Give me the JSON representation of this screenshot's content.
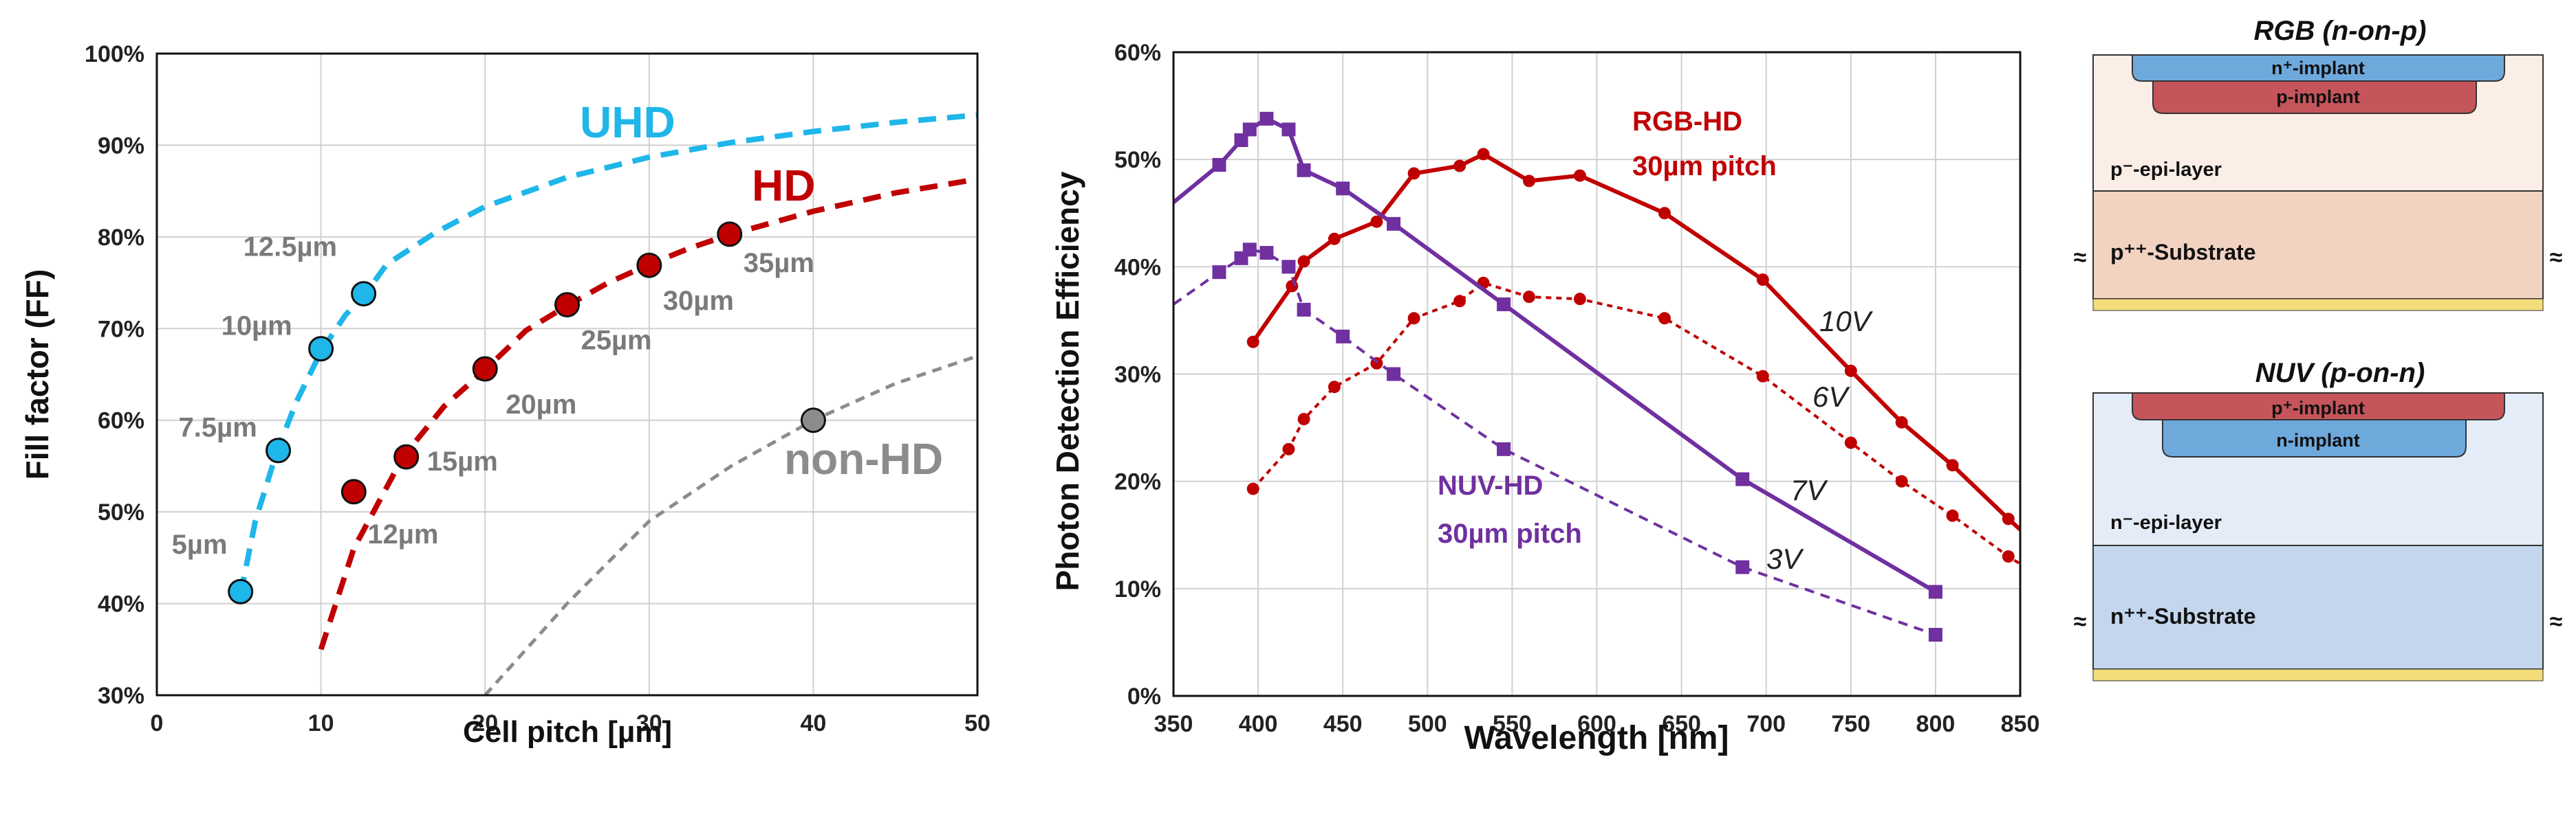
{
  "chart_data": [
    {
      "type": "scatter",
      "title": "",
      "xlabel": "Cell pitch [µm]",
      "ylabel": "Fill factor (FF)",
      "xlim": [
        0,
        50
      ],
      "ylim": [
        30,
        100
      ],
      "x_ticks": [
        "0",
        "10",
        "20",
        "30",
        "40",
        "50"
      ],
      "y_ticks": [
        "30%",
        "40%",
        "50%",
        "60%",
        "70%",
        "80%",
        "90%",
        "100%"
      ],
      "grid": true,
      "series": [
        {
          "name": "UHD",
          "color": "#1fb6ea",
          "curve": {
            "x": [
              5.1,
              6,
              7.3,
              8.5,
              10,
              11.5,
              12.6,
              14,
              17,
              20,
              25,
              30,
              35,
              40,
              45,
              50
            ],
            "y": [
              41,
              49,
              56.5,
              62,
              67.5,
              71.5,
              73.5,
              77,
              80.5,
              83.3,
              86.5,
              88.7,
              90.3,
              91.5,
              92.5,
              93.3
            ]
          },
          "points": [
            {
              "x": 5.1,
              "y": 41.3,
              "label": "5µm"
            },
            {
              "x": 7.4,
              "y": 56.7,
              "label": "7.5µm"
            },
            {
              "x": 10.0,
              "y": 67.8,
              "label": "10µm"
            },
            {
              "x": 12.6,
              "y": 73.8,
              "label": "12.5µm"
            }
          ]
        },
        {
          "name": "HD",
          "color": "#c00000",
          "curve": {
            "x": [
              10,
              12,
              15,
              17.5,
              20,
              22.5,
              25,
              27.5,
              30,
              32.5,
              35,
              40,
              45,
              50
            ],
            "y": [
              35,
              46,
              56,
              61.5,
              65.5,
              69.8,
              72.5,
              75,
              77,
              78.8,
              80.3,
              82.8,
              84.8,
              86.3
            ]
          },
          "points": [
            {
              "x": 12.0,
              "y": 52.2,
              "label": "12µm"
            },
            {
              "x": 15.2,
              "y": 56.0,
              "label": "15µm"
            },
            {
              "x": 20.0,
              "y": 65.6,
              "label": "20µm"
            },
            {
              "x": 25.0,
              "y": 72.6,
              "label": "25µm"
            },
            {
              "x": 30.0,
              "y": 76.9,
              "label": "30µm"
            },
            {
              "x": 34.9,
              "y": 80.3,
              "label": "35µm"
            }
          ]
        },
        {
          "name": "non-HD",
          "color": "#8c8c8c",
          "curve": {
            "x": [
              20,
              25,
              30,
              35,
              40,
              45,
              50
            ],
            "y": [
              30,
              40,
              49,
              55,
              60,
              64,
              67
            ]
          },
          "points": [
            {
              "x": 40.0,
              "y": 60.0,
              "label": ""
            }
          ]
        }
      ],
      "annotations": [
        "UHD",
        "HD",
        "non-HD"
      ]
    },
    {
      "type": "line",
      "title": "",
      "xlabel": "Wavelength  [nm]",
      "ylabel": "Photon Detection Efficiency",
      "xlim": [
        350,
        850
      ],
      "ylim": [
        0,
        60
      ],
      "x_ticks": [
        "350",
        "400",
        "450",
        "500",
        "550",
        "600",
        "650",
        "700",
        "750",
        "800",
        "850"
      ],
      "y_ticks": [
        "0%",
        "10%",
        "20%",
        "30%",
        "40%",
        "50%",
        "60%"
      ],
      "grid": true,
      "series": [
        {
          "name": "RGB-HD 10V",
          "label": "10V",
          "color": "#c00000",
          "dashed": false,
          "marker": "circle",
          "x": [
            397,
            420,
            427,
            445,
            470,
            492,
            519,
            533,
            560,
            590,
            640,
            698,
            750,
            780,
            810,
            843,
            850
          ],
          "y": [
            33,
            38.2,
            40.5,
            42.6,
            44.2,
            48.7,
            49.4,
            50.5,
            48,
            48.5,
            45,
            38.8,
            30.3,
            25.5,
            21.5,
            16.5,
            15.5
          ]
        },
        {
          "name": "RGB-HD 6V",
          "label": "6V",
          "color": "#c00000",
          "dashed": true,
          "marker": "circle",
          "x": [
            397,
            418,
            427,
            445,
            470,
            492,
            519,
            533,
            560,
            590,
            640,
            698,
            750,
            780,
            810,
            843,
            850
          ],
          "y": [
            19.3,
            23,
            25.8,
            28.8,
            31,
            35.2,
            36.8,
            38.5,
            37.2,
            37,
            35.2,
            29.8,
            23.6,
            20,
            16.8,
            13,
            12.3
          ]
        },
        {
          "name": "NUV-HD 7V",
          "label": "7V",
          "color": "#7030a0",
          "dashed": false,
          "marker": "square",
          "x": [
            350,
            377,
            390,
            395,
            405,
            418,
            427,
            450,
            480,
            545,
            686,
            800
          ],
          "y": [
            46,
            49.5,
            51.8,
            52.8,
            53.8,
            52.8,
            49,
            47.3,
            44,
            36.5,
            20.2,
            9.7
          ]
        },
        {
          "name": "NUV-HD 3V",
          "label": "3V",
          "color": "#7030a0",
          "dashed": true,
          "marker": "square",
          "x": [
            350,
            377,
            390,
            395,
            405,
            418,
            427,
            450,
            480,
            545,
            686,
            800
          ],
          "y": [
            36.5,
            39.5,
            40.8,
            41.6,
            41.3,
            40,
            36,
            33.5,
            30,
            23,
            12,
            5.7
          ]
        }
      ],
      "annotations": {
        "rgb_title": "RGB-HD",
        "rgb_pitch": "30µm pitch",
        "nuv_title": "NUV-HD",
        "nuv_pitch": "30µm pitch"
      }
    }
  ],
  "diagram": {
    "rgb": {
      "title": "RGB  (n-on-p)",
      "top_implant": "n⁺-implant",
      "inner_implant": "p-implant",
      "epi": "p⁻-epi-layer",
      "substrate": "p⁺⁺-Substrate",
      "colors": {
        "epi": "#fbeee6",
        "substrate": "#f2d3c2",
        "n_implant": "#6ea9dc",
        "p_implant": "#c5555b",
        "metal": "#f3dd7a"
      }
    },
    "nuv": {
      "title": "NUV  (p-on-n)",
      "top_implant": "p⁺-implant",
      "inner_implant": "n-implant",
      "epi": "n⁻-epi-layer",
      "substrate": "n⁺⁺-Substrate",
      "colors": {
        "epi": "#e3ecf7",
        "substrate": "#c3d6ee",
        "n_implant": "#6ea9dc",
        "p_implant": "#c5555b",
        "metal": "#f3dd7a"
      }
    },
    "break_symbol": "≈"
  }
}
